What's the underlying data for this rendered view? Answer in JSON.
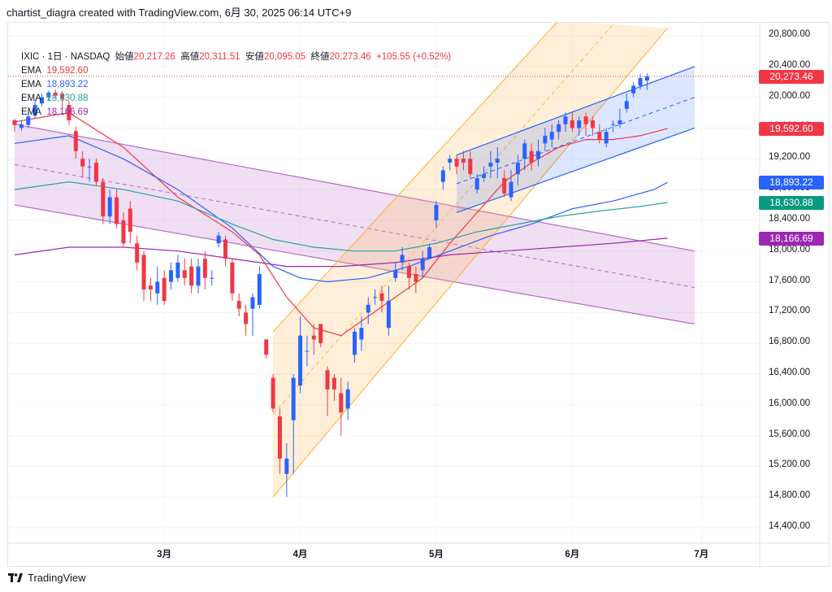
{
  "header": {
    "text": "chartist_diagra created with TradingView.com, 6月 30, 2025 06:14 UTC+9"
  },
  "legend": {
    "symbol_line": {
      "symbol": "IXIC · 1日 · NASDAQ",
      "open_label": "始値",
      "open": "20,217.26",
      "high_label": "高値",
      "high": "20,311.51",
      "low_label": "安値",
      "low": "20,095.05",
      "close_label": "終値",
      "close": "20,273.46",
      "change": "+105.55 (+0.52%)"
    },
    "ema_rows": [
      {
        "label": "EMA",
        "value": "19,592.60",
        "color": "#e53935"
      },
      {
        "label": "EMA",
        "value": "18,893.22",
        "color": "#2962ff"
      },
      {
        "label": "EMA",
        "value": "18,630.88",
        "color": "#26a69a"
      },
      {
        "label": "EMA",
        "value": "18,166.69",
        "color": "#9c27b0"
      }
    ]
  },
  "price_tags": [
    {
      "text": "20,273.46",
      "value": 20273.46,
      "color": "#f23645"
    },
    {
      "text": "19,592.60",
      "value": 19592.6,
      "color": "#f23645"
    },
    {
      "text": "18,893.22",
      "value": 18893.22,
      "color": "#2962ff"
    },
    {
      "text": "18,630.88",
      "value": 18630.88,
      "color": "#089981"
    },
    {
      "text": "18,166.69",
      "value": 18166.69,
      "color": "#9c27b0"
    }
  ],
  "footer": {
    "brand": "TradingView"
  },
  "chart_data": {
    "type": "candlestick",
    "y_range": [
      14000,
      21000
    ],
    "y_ticks": [
      {
        "value": 14400,
        "label": "14,400.00"
      },
      {
        "value": 14800,
        "label": "14,800.00"
      },
      {
        "value": 15200,
        "label": "15,200.00"
      },
      {
        "value": 15600,
        "label": "15,600.00"
      },
      {
        "value": 16000,
        "label": "16,000.00"
      },
      {
        "value": 16400,
        "label": "16,400.00"
      },
      {
        "value": 16800,
        "label": "16,800.00"
      },
      {
        "value": 17200,
        "label": "17,200.00"
      },
      {
        "value": 17600,
        "label": "17,600.00"
      },
      {
        "value": 18000,
        "label": "18,000.00"
      },
      {
        "value": 18400,
        "label": "18,400.00"
      },
      {
        "value": 18800,
        "label": "18,800.00"
      },
      {
        "value": 19200,
        "label": "19,200.00"
      },
      {
        "value": 19600,
        "label": "19,600.00"
      },
      {
        "value": 20000,
        "label": "20,000.00"
      },
      {
        "value": 20400,
        "label": "20,400.00"
      },
      {
        "value": 20800,
        "label": "20,800.00"
      }
    ],
    "x_ticks": [
      {
        "index": 22,
        "label": "3月"
      },
      {
        "index": 42,
        "label": "4月"
      },
      {
        "index": 62,
        "label": "5月"
      },
      {
        "index": 82,
        "label": "6月"
      },
      {
        "index": 101,
        "label": "7月"
      }
    ],
    "x_index_range": [
      0,
      106
    ],
    "last_close": 20273.46,
    "candles": [
      [
        19700,
        19640,
        19550,
        19720
      ],
      [
        19600,
        19650,
        19560,
        19700
      ],
      [
        19640,
        19750,
        19600,
        19800
      ],
      [
        19760,
        19900,
        19720,
        19960
      ],
      [
        19920,
        20000,
        19880,
        20050
      ],
      [
        20000,
        20060,
        19950,
        20090
      ],
      [
        20060,
        20020,
        19980,
        20100
      ],
      [
        20050,
        19980,
        19850,
        20080
      ],
      [
        19900,
        19700,
        19640,
        19950
      ],
      [
        19560,
        19300,
        19200,
        19620
      ],
      [
        19200,
        19100,
        18950,
        19300
      ],
      [
        19100,
        19100,
        18900,
        19200
      ],
      [
        19150,
        18900,
        18850,
        19200
      ],
      [
        18900,
        18450,
        18350,
        18950
      ],
      [
        18450,
        18700,
        18350,
        18800
      ],
      [
        18700,
        18350,
        18300,
        18800
      ],
      [
        18400,
        18100,
        18050,
        18500
      ],
      [
        18550,
        18250,
        18100,
        18650
      ],
      [
        18100,
        17850,
        17750,
        18200
      ],
      [
        17950,
        17500,
        17350,
        18000
      ],
      [
        17550,
        17500,
        17350,
        17650
      ],
      [
        17450,
        17600,
        17300,
        17800
      ],
      [
        17650,
        17350,
        17300,
        17750
      ],
      [
        17600,
        17750,
        17500,
        17850
      ],
      [
        17650,
        17850,
        17600,
        17950
      ],
      [
        17750,
        17650,
        17550,
        17900
      ],
      [
        17800,
        17550,
        17450,
        17900
      ],
      [
        17550,
        17800,
        17450,
        17900
      ],
      [
        17900,
        17650,
        17500,
        18000
      ],
      [
        17650,
        17650,
        17550,
        17750
      ],
      [
        18100,
        18200,
        18050,
        18250
      ],
      [
        18150,
        17900,
        17800,
        18200
      ],
      [
        17850,
        17450,
        17350,
        17900
      ],
      [
        17350,
        17250,
        17150,
        17450
      ],
      [
        17200,
        17050,
        16900,
        17300
      ],
      [
        17250,
        17400,
        16900,
        17450
      ],
      [
        17300,
        17700,
        17250,
        17800
      ],
      [
        16850,
        16650,
        16600,
        16850
      ],
      [
        16350,
        15950,
        15900,
        16400
      ],
      [
        15850,
        15300,
        15100,
        15950
      ],
      [
        15100,
        15300,
        14800,
        15500
      ],
      [
        15800,
        16350,
        15100,
        16400
      ],
      [
        16250,
        16900,
        16150,
        17150
      ],
      [
        16700,
        16700,
        16500,
        16900
      ],
      [
        16900,
        16850,
        16650,
        17050
      ],
      [
        17050,
        16800,
        16750,
        17050
      ],
      [
        16450,
        16200,
        15850,
        16500
      ],
      [
        16350,
        16200,
        16050,
        16400
      ],
      [
        16150,
        15900,
        15600,
        16350
      ],
      [
        15950,
        16200,
        15800,
        16300
      ],
      [
        16650,
        16950,
        16550,
        17000
      ],
      [
        16850,
        17000,
        16700,
        17150
      ],
      [
        17200,
        17300,
        17050,
        17400
      ],
      [
        17400,
        17400,
        17300,
        17500
      ],
      [
        17450,
        17350,
        17200,
        17550
      ],
      [
        17000,
        17350,
        16900,
        17550
      ],
      [
        17650,
        17750,
        17600,
        17850
      ],
      [
        17850,
        17950,
        17750,
        18050
      ],
      [
        17800,
        17650,
        17500,
        17850
      ],
      [
        17700,
        17600,
        17450,
        17800
      ],
      [
        17750,
        17900,
        17650,
        18000
      ],
      [
        17900,
        18050,
        17900,
        18100
      ],
      [
        18400,
        18600,
        18300,
        18650
      ],
      [
        18900,
        19050,
        18800,
        19100
      ],
      [
        19150,
        19200,
        19050,
        19250
      ],
      [
        19200,
        19100,
        19000,
        19250
      ],
      [
        19200,
        19150,
        19050,
        19300
      ],
      [
        19200,
        19000,
        18950,
        19300
      ],
      [
        18800,
        18950,
        18750,
        19000
      ],
      [
        18950,
        19000,
        18900,
        19100
      ],
      [
        19100,
        19150,
        18950,
        19300
      ],
      [
        19150,
        19200,
        18950,
        19350
      ],
      [
        18950,
        18750,
        18700,
        19050
      ],
      [
        18700,
        18900,
        18650,
        19050
      ],
      [
        19000,
        19150,
        18850,
        19250
      ],
      [
        19200,
        19400,
        19050,
        19450
      ],
      [
        19300,
        19150,
        19050,
        19400
      ],
      [
        19200,
        19300,
        19100,
        19450
      ],
      [
        19400,
        19500,
        19300,
        19600
      ],
      [
        19450,
        19550,
        19350,
        19650
      ],
      [
        19550,
        19650,
        19450,
        19700
      ],
      [
        19650,
        19750,
        19550,
        19800
      ],
      [
        19700,
        19600,
        19550,
        19800
      ],
      [
        19600,
        19700,
        19500,
        19750
      ],
      [
        19750,
        19650,
        19500,
        19800
      ],
      [
        19700,
        19600,
        19500,
        19750
      ],
      [
        19550,
        19450,
        19400,
        19650
      ],
      [
        19400,
        19550,
        19350,
        19600
      ],
      [
        19650,
        19650,
        19550,
        19700
      ],
      [
        19650,
        19700,
        19600,
        19850
      ],
      [
        19850,
        19950,
        19800,
        20050
      ],
      [
        20050,
        20150,
        20000,
        20200
      ],
      [
        20150,
        20250,
        20100,
        20300
      ],
      [
        20217.26,
        20273.46,
        20095.05,
        20311.51
      ]
    ],
    "ema_series": [
      {
        "name": "EMA 19,592.60",
        "color": "#f23645",
        "points": [
          [
            0,
            19680
          ],
          [
            8,
            19800
          ],
          [
            16,
            19350
          ],
          [
            24,
            18700
          ],
          [
            32,
            18250
          ],
          [
            36,
            17950
          ],
          [
            40,
            17400
          ],
          [
            44,
            17000
          ],
          [
            48,
            16900
          ],
          [
            52,
            17150
          ],
          [
            56,
            17400
          ],
          [
            60,
            17650
          ],
          [
            64,
            18100
          ],
          [
            68,
            18500
          ],
          [
            72,
            18900
          ],
          [
            76,
            19150
          ],
          [
            80,
            19350
          ],
          [
            84,
            19450
          ],
          [
            88,
            19450
          ],
          [
            92,
            19500
          ],
          [
            96,
            19592.6
          ]
        ]
      },
      {
        "name": "EMA 18,893.22",
        "color": "#2962ff",
        "points": [
          [
            0,
            19400
          ],
          [
            8,
            19500
          ],
          [
            16,
            19200
          ],
          [
            24,
            18800
          ],
          [
            32,
            18300
          ],
          [
            38,
            17800
          ],
          [
            42,
            17650
          ],
          [
            46,
            17600
          ],
          [
            52,
            17650
          ],
          [
            58,
            17800
          ],
          [
            64,
            18000
          ],
          [
            70,
            18200
          ],
          [
            76,
            18350
          ],
          [
            82,
            18550
          ],
          [
            88,
            18650
          ],
          [
            94,
            18800
          ],
          [
            96,
            18893.22
          ]
        ]
      },
      {
        "name": "EMA 18,630.88",
        "color": "#26a69a",
        "points": [
          [
            0,
            18800
          ],
          [
            8,
            18900
          ],
          [
            16,
            18800
          ],
          [
            24,
            18650
          ],
          [
            32,
            18350
          ],
          [
            38,
            18150
          ],
          [
            44,
            18050
          ],
          [
            50,
            18000
          ],
          [
            56,
            18000
          ],
          [
            62,
            18100
          ],
          [
            68,
            18250
          ],
          [
            74,
            18350
          ],
          [
            80,
            18450
          ],
          [
            86,
            18520
          ],
          [
            92,
            18580
          ],
          [
            96,
            18630.88
          ]
        ]
      },
      {
        "name": "EMA 18,166.69",
        "color": "#9c27b0",
        "points": [
          [
            0,
            17950
          ],
          [
            8,
            18050
          ],
          [
            16,
            18050
          ],
          [
            24,
            18000
          ],
          [
            32,
            17900
          ],
          [
            40,
            17800
          ],
          [
            48,
            17800
          ],
          [
            56,
            17850
          ],
          [
            64,
            17950
          ],
          [
            72,
            18000
          ],
          [
            80,
            18050
          ],
          [
            88,
            18100
          ],
          [
            96,
            18166.69
          ]
        ]
      }
    ],
    "channels": [
      {
        "name": "descending",
        "fill": "rgba(186,104,200,0.22)",
        "stroke": "#ba68c8",
        "upper": [
          [
            0,
            19650
          ],
          [
            100,
            18000
          ]
        ],
        "lower": [
          [
            0,
            18600
          ],
          [
            100,
            17050
          ]
        ],
        "mid_dashed": true
      },
      {
        "name": "rising-orange",
        "fill": "rgba(255,183,77,0.22)",
        "stroke": "#ffb74d",
        "upper": [
          [
            38,
            16950
          ],
          [
            80,
            21000
          ]
        ],
        "lower": [
          [
            38,
            14800
          ],
          [
            96,
            20900
          ]
        ],
        "mid_dashed": true
      },
      {
        "name": "rising-blue",
        "fill": "rgba(41,98,255,0.16)",
        "stroke": "#2962ff",
        "upper": [
          [
            65,
            19250
          ],
          [
            100,
            20400
          ]
        ],
        "lower": [
          [
            65,
            18500
          ],
          [
            100,
            19600
          ]
        ],
        "mid_dashed": true
      }
    ]
  }
}
